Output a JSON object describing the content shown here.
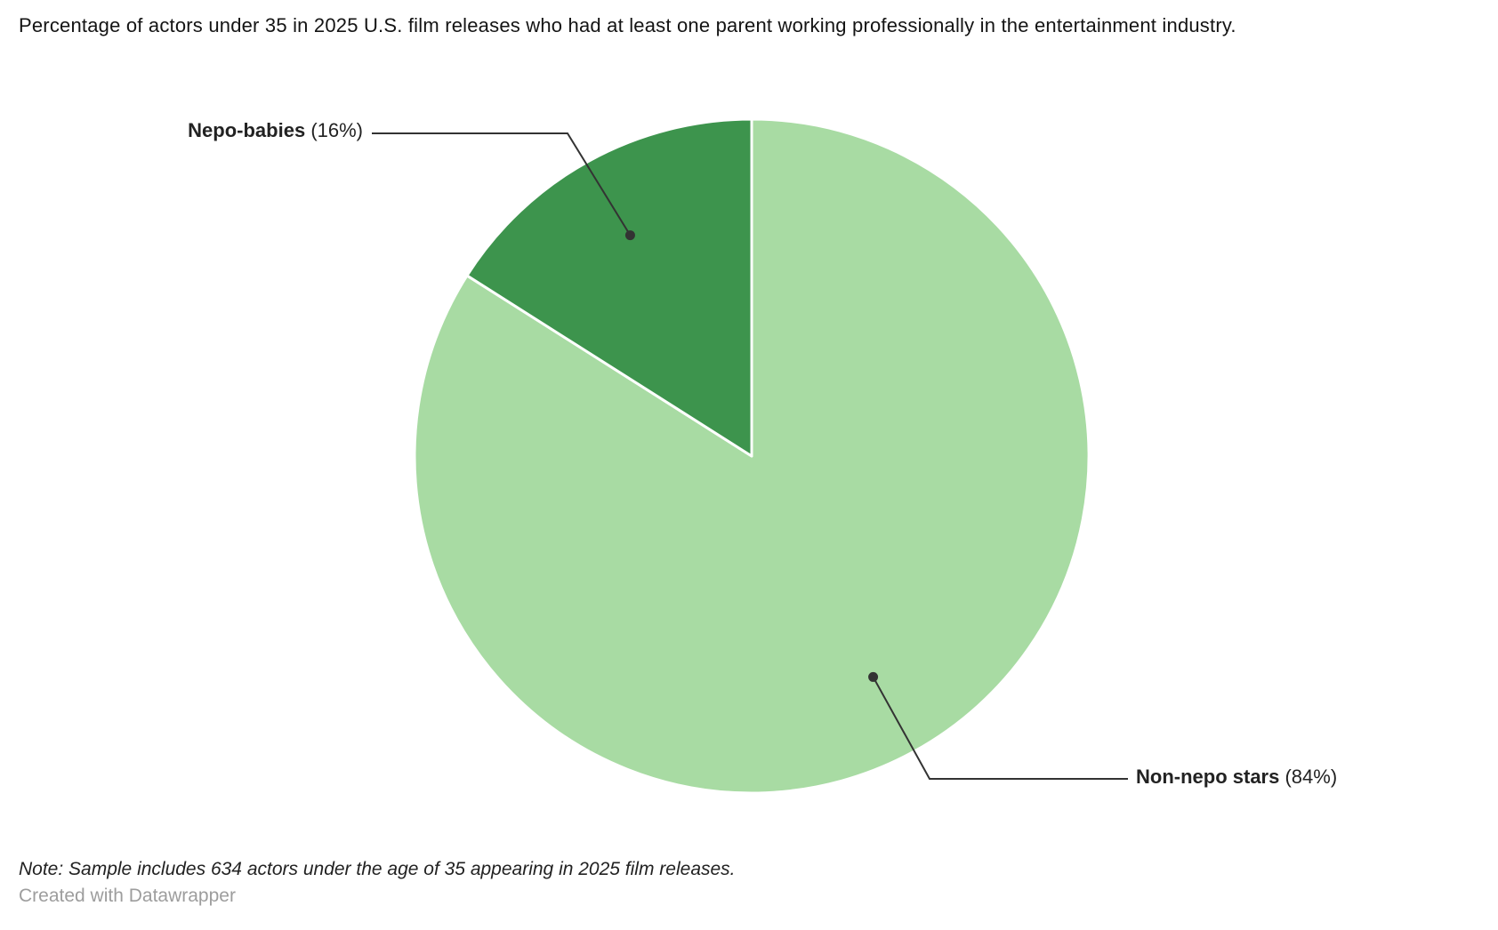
{
  "chart_data": {
    "type": "pie",
    "title": "Percentage of actors under 35 in 2025 U.S. film releases who had at least one parent working professionally in the entertainment industry.",
    "slices": [
      {
        "label": "Non-nepo stars",
        "value": 84,
        "value_label": "(84%)",
        "color": "#a8dba3"
      },
      {
        "label": "Nepo-babies",
        "value": 16,
        "value_label": "(16%)",
        "color": "#3d944d"
      }
    ],
    "start_angle": "12-o-clock",
    "direction": "clockwise",
    "separator_color": "#ffffff",
    "connector_color": "#333333",
    "note": "Note: Sample includes 634 actors under the age of 35 appearing in 2025 film releases.",
    "credit": "Created with Datawrapper"
  }
}
